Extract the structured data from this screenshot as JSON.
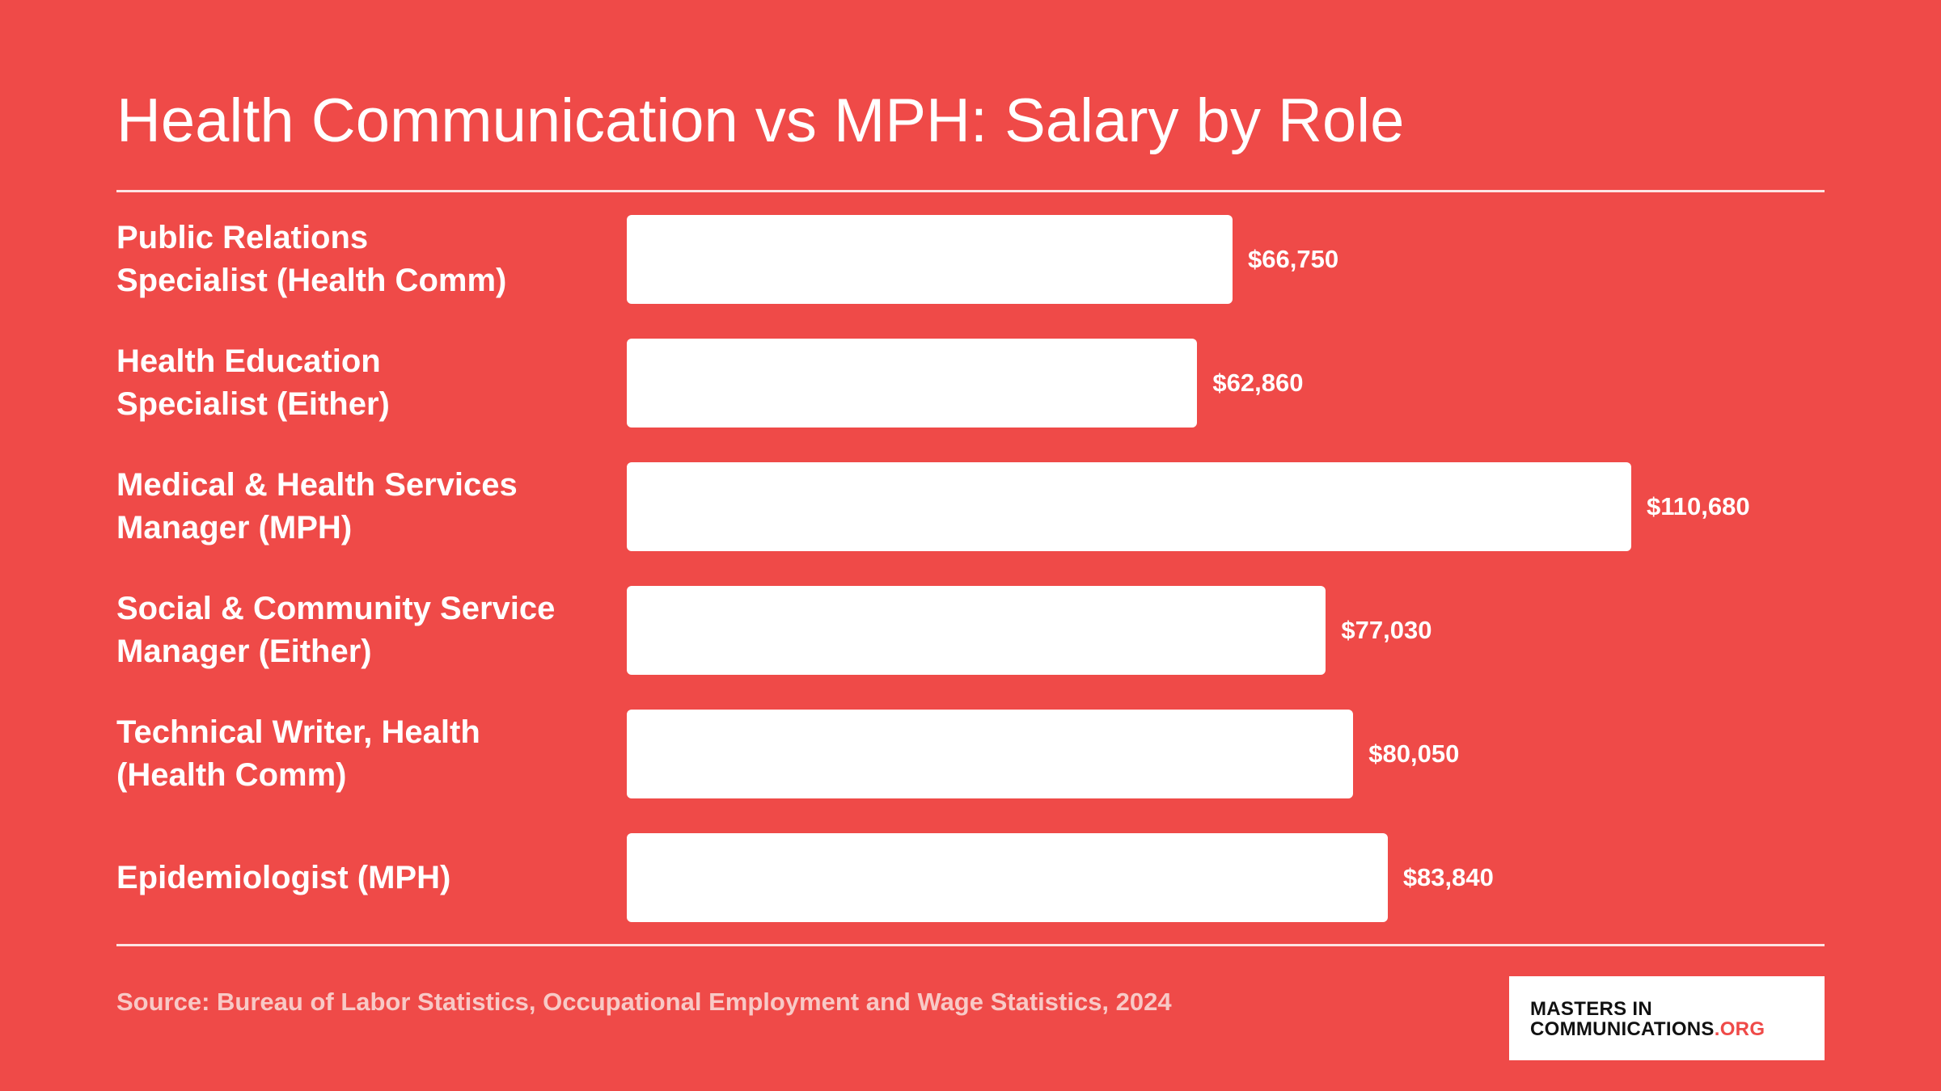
{
  "chart_data": {
    "type": "bar",
    "orientation": "horizontal",
    "title": "Health Communication vs MPH: Salary by Role",
    "categories": [
      "Public Relations\nSpecialist (Health Comm)",
      "Health Education\nSpecialist (Either)",
      "Medical & Health Services\nManager (MPH)",
      "Social & Community Service\nManager (Either)",
      "Technical Writer, Health\n(Health Comm)",
      "Epidemiologist (MPH)"
    ],
    "values": [
      66750,
      62860,
      110680,
      77030,
      80050,
      83840
    ],
    "value_labels": [
      "$66,750",
      "$62,860",
      "$110,680",
      "$77,030",
      "$80,050",
      "$83,840"
    ],
    "color": "#ffffff",
    "source": "Source: Bureau of Labor Statistics, Occupational Employment and Wage Statistics, 2024"
  },
  "logo": {
    "line1": "MASTERS IN",
    "line2": "COMMUNICATIONS",
    "suffix": ".ORG"
  }
}
